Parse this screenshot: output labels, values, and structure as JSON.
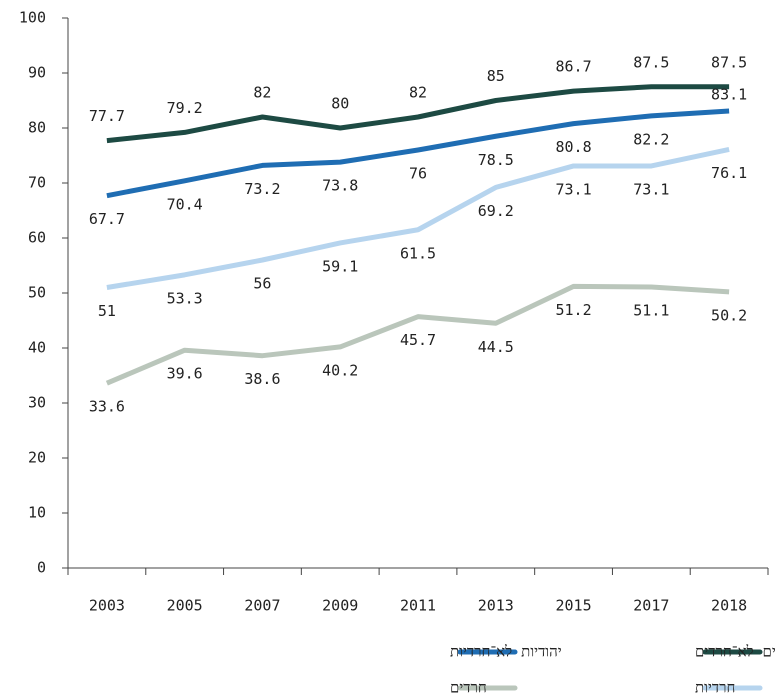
{
  "chart_data": {
    "type": "line",
    "categories": [
      "2003",
      "2005",
      "2007",
      "2009",
      "2011",
      "2013",
      "2015",
      "2017",
      "2018"
    ],
    "series": [
      {
        "name": "יהודים לא־חרדים",
        "color": "#1d4a43",
        "values": [
          77.7,
          79.2,
          82,
          80,
          82,
          85,
          86.7,
          87.5,
          87.5
        ]
      },
      {
        "name": "יהודיות לא־חרדיות",
        "color": "#1f6db3",
        "values": [
          67.7,
          70.4,
          73.2,
          73.8,
          76,
          78.5,
          80.8,
          82.2,
          83.1
        ]
      },
      {
        "name": "חרדיות",
        "color": "#b6d4ee",
        "values": [
          51,
          53.3,
          56,
          59.1,
          61.5,
          69.2,
          73.1,
          73.1,
          76.1
        ]
      },
      {
        "name": "חרדים",
        "color": "#bac6bb",
        "values": [
          33.6,
          39.6,
          38.6,
          40.2,
          45.7,
          44.5,
          51.2,
          51.1,
          50.2
        ]
      }
    ],
    "ylim": [
      0,
      100
    ],
    "yticks": [
      0,
      10,
      20,
      30,
      40,
      50,
      60,
      70,
      80,
      90,
      100
    ]
  }
}
